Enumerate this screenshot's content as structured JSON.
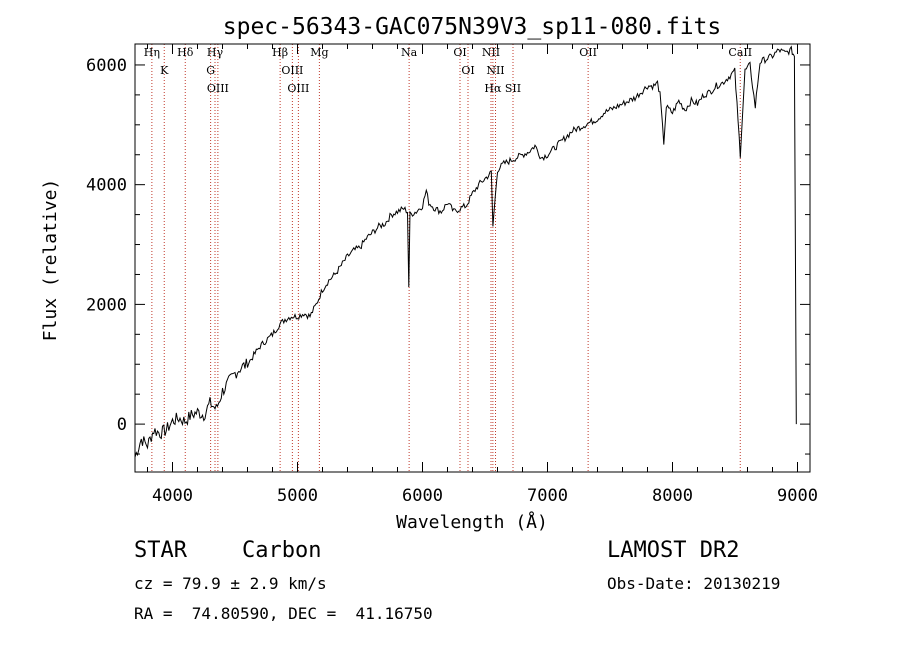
{
  "chart_data": {
    "type": "line",
    "title": "spec-56343-GAC075N39V3_sp11-080.fits",
    "xlabel": "Wavelength (Å)",
    "ylabel": "Flux (relative)",
    "xlim": [
      3700,
      9100
    ],
    "ylim": [
      -800,
      6350
    ],
    "x_ticks": [
      4000,
      5000,
      6000,
      7000,
      8000,
      9000
    ],
    "x_tick_labels": [
      "4000",
      "5000",
      "6000",
      "7000",
      "8000",
      "9000"
    ],
    "y_ticks": [
      0,
      2000,
      4000,
      6000
    ],
    "y_tick_labels": [
      "0",
      "2000",
      "4000",
      "6000"
    ],
    "grid": false,
    "series": [
      {
        "color": "#000000",
        "x": [
          3700,
          3750,
          3800,
          3850,
          3900,
          3950,
          4000,
          4050,
          4100,
          4150,
          4200,
          4250,
          4300,
          4350,
          4400,
          4450,
          4500,
          4550,
          4600,
          4650,
          4700,
          4750,
          4800,
          4850,
          4900,
          4950,
          5000,
          5050,
          5100,
          5150,
          5200,
          5250,
          5300,
          5350,
          5400,
          5450,
          5500,
          5550,
          5600,
          5650,
          5700,
          5750,
          5800,
          5850,
          5880,
          5890,
          5900,
          5950,
          6000,
          6030,
          6050,
          6100,
          6150,
          6200,
          6250,
          6300,
          6350,
          6400,
          6450,
          6500,
          6550,
          6563,
          6600,
          6650,
          6700,
          6750,
          6800,
          6850,
          6900,
          6950,
          7000,
          7050,
          7100,
          7150,
          7200,
          7250,
          7300,
          7350,
          7400,
          7450,
          7500,
          7550,
          7600,
          7650,
          7700,
          7750,
          7800,
          7850,
          7880,
          7900,
          7930,
          7950,
          8000,
          8050,
          8100,
          8150,
          8200,
          8250,
          8300,
          8350,
          8400,
          8450,
          8498,
          8542,
          8580,
          8620,
          8662,
          8700,
          8750,
          8800,
          8850,
          8900,
          8950,
          8975,
          8985,
          8990
        ],
        "y": [
          -550,
          -250,
          -350,
          -100,
          -150,
          -100,
          50,
          100,
          50,
          150,
          200,
          150,
          350,
          250,
          550,
          700,
          850,
          950,
          1000,
          1150,
          1300,
          1400,
          1500,
          1650,
          1750,
          1800,
          1800,
          1850,
          1800,
          2000,
          2250,
          2400,
          2500,
          2650,
          2800,
          2900,
          2950,
          3100,
          3200,
          3300,
          3350,
          3500,
          3550,
          3600,
          3550,
          2300,
          3500,
          3550,
          3650,
          3900,
          3700,
          3600,
          3550,
          3700,
          3550,
          3600,
          3650,
          3850,
          4000,
          4100,
          4200,
          3300,
          4250,
          4350,
          4400,
          4450,
          4500,
          4550,
          4650,
          4450,
          4500,
          4600,
          4700,
          4800,
          4900,
          4950,
          5000,
          5050,
          5100,
          5200,
          5250,
          5300,
          5350,
          5400,
          5450,
          5550,
          5650,
          5650,
          5700,
          5500,
          4700,
          5300,
          5200,
          5400,
          5250,
          5400,
          5350,
          5500,
          5550,
          5650,
          5700,
          5800,
          5900,
          4500,
          5900,
          6000,
          5300,
          6050,
          6100,
          6150,
          6250,
          6200,
          6250,
          6150,
          2300,
          0
        ]
      }
    ],
    "lines": [
      {
        "label": "Hη",
        "x": 3835
      },
      {
        "label": "K",
        "x": 3934
      },
      {
        "label": "Hδ",
        "x": 4102
      },
      {
        "label": "Hγ",
        "x": 4340
      },
      {
        "label": "G",
        "x": 4305
      },
      {
        "label": "OIII",
        "x": 4363
      },
      {
        "label": "Hβ",
        "x": 4861
      },
      {
        "label": "OIII",
        "x": 4959
      },
      {
        "label": "OIII",
        "x": 5007
      },
      {
        "label": "Mg",
        "x": 5175
      },
      {
        "label": "Na",
        "x": 5893
      },
      {
        "label": "OI",
        "x": 6300
      },
      {
        "label": "OI",
        "x": 6364
      },
      {
        "label": "NII",
        "x": 6548
      },
      {
        "label": "Hα",
        "x": 6563
      },
      {
        "label": "NII",
        "x": 6584
      },
      {
        "label": "SII",
        "x": 6724
      },
      {
        "label": "OII",
        "x": 7325
      },
      {
        "label": "CaII",
        "x": 8542
      }
    ]
  },
  "info": {
    "star_label": "STAR",
    "class_label": "Carbon",
    "cz_text": "cz = 79.9 ± 2.9 km/s",
    "ra_dec_text": "RA =  74.80590, DEC =  41.16750",
    "survey_label": "LAMOST DR2",
    "obs_date_text": "Obs-Date: 20130219"
  }
}
